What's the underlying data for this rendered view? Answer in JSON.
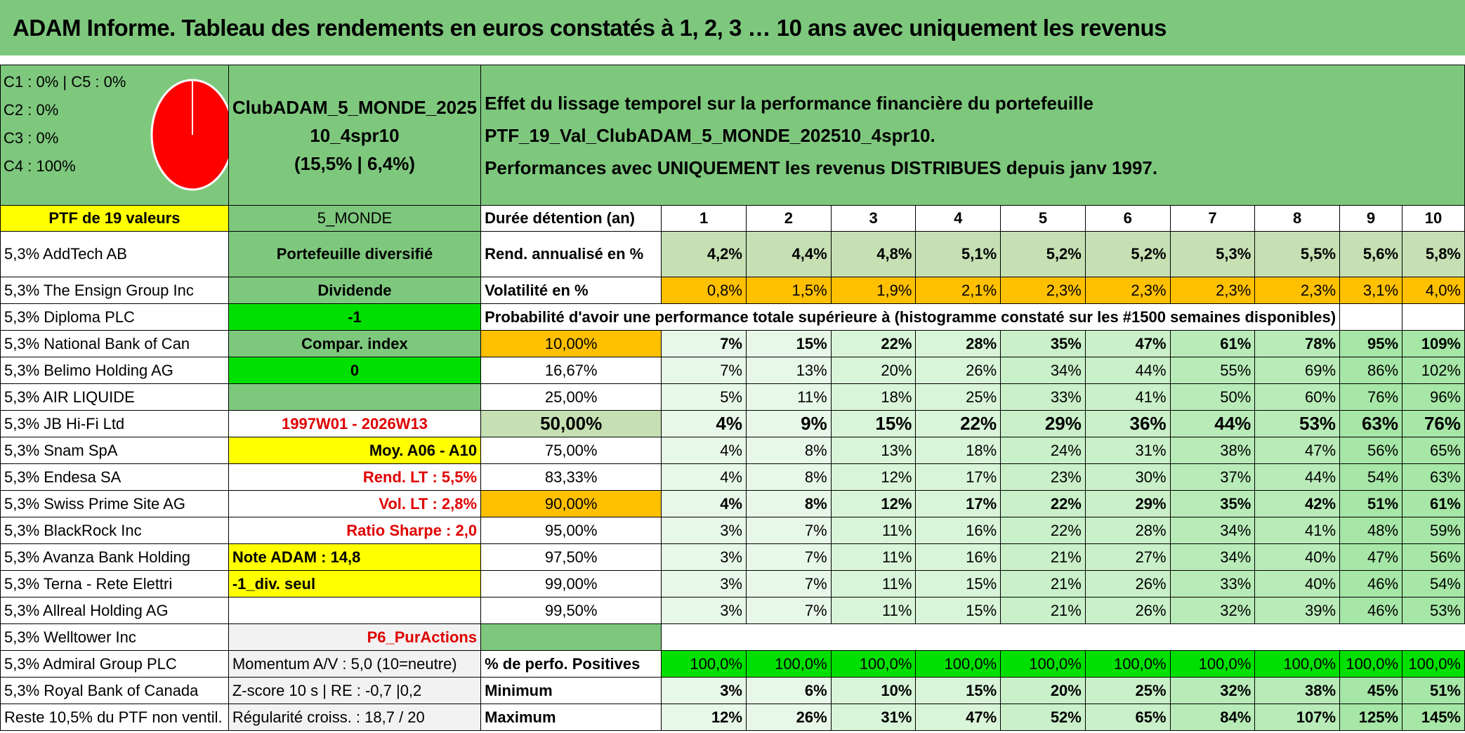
{
  "title": "ADAM Informe. Tableau des rendements en euros constatés à 1, 2, 3 … 10 ans avec uniquement les revenus",
  "pie_legend": [
    "C1 : 0% | C5 : 0%",
    "C2 : 0%",
    "C3 : 0%",
    "C4 : 100%"
  ],
  "portfolio_name": [
    "ClubADAM_5_MONDE_2025",
    "10_4spr10",
    "(15,5% | 6,4%)"
  ],
  "description": [
    "Effet du lissage temporel sur la performance financière du portefeuille PTF_19_Val_ClubADAM_5_MONDE_202510_4spr10.",
    "Performances avec UNIQUEMENT les revenus DISTRIBUES depuis janv 1997."
  ],
  "ptf_header": "PTF de 19 valeurs",
  "zone": "5_MONDE",
  "holdings": [
    "5,3% AddTech AB",
    "5,3% The Ensign Group Inc",
    "5,3% Diploma PLC",
    "5,3% National Bank of Can",
    "5,3% Belimo Holding AG",
    "5,3% AIR LIQUIDE",
    "5,3% JB Hi-Fi Ltd",
    "5,3% Snam SpA",
    "5,3% Endesa SA",
    "5,3% Swiss Prime Site AG",
    "5,3% BlackRock Inc",
    "5,3% Avanza Bank Holding",
    "5,3% Terna - Rete Elettri",
    "5,3% Allreal Holding AG",
    "5,3% Welltower Inc",
    "5,3% Admiral Group PLC",
    "5,3% Royal Bank of Canada",
    "Reste 10,5% du PTF non ventil."
  ],
  "info": [
    "Portefeuille diversifié",
    "Dividende",
    "-1",
    "Compar. index",
    "0",
    "",
    "1997W01 - 2026W13",
    "Moy. A06 - A10",
    "Rend. LT : 5,5%",
    "Vol. LT : 2,8%",
    "Ratio Sharpe : 2,0",
    "Note ADAM : 14,8",
    "-1_div. seul",
    "",
    "P6_PurActions",
    "Momentum A/V : 5,0 (10=neutre)",
    "Z-score 10 s | RE : -0,7 |0,2",
    "Régularité croiss. : 18,7 / 20"
  ],
  "years_label": "Durée détention (an)",
  "years": [
    "1",
    "2",
    "3",
    "4",
    "5",
    "6",
    "7",
    "8",
    "9",
    "10"
  ],
  "rend_label": "Rend. annualisé en %",
  "rend": [
    "4,2%",
    "4,4%",
    "4,8%",
    "5,1%",
    "5,2%",
    "5,2%",
    "5,3%",
    "5,5%",
    "5,6%",
    "5,8%"
  ],
  "vol_label": "Volatilité en %",
  "vol": [
    "0,8%",
    "1,5%",
    "1,9%",
    "2,1%",
    "2,3%",
    "2,3%",
    "2,3%",
    "2,3%",
    "3,1%",
    "4,0%"
  ],
  "proba_label": "Probabilité d'avoir une performance totale supérieure à (histogramme constaté sur les #1500 semaines disponibles)",
  "proba": [
    {
      "pct": "10,00%",
      "vals": [
        "7%",
        "15%",
        "22%",
        "28%",
        "35%",
        "47%",
        "61%",
        "78%",
        "95%",
        "109%"
      ]
    },
    {
      "pct": "16,67%",
      "vals": [
        "7%",
        "13%",
        "20%",
        "26%",
        "34%",
        "44%",
        "55%",
        "69%",
        "86%",
        "102%"
      ]
    },
    {
      "pct": "25,00%",
      "vals": [
        "5%",
        "11%",
        "18%",
        "25%",
        "33%",
        "41%",
        "50%",
        "60%",
        "76%",
        "96%"
      ]
    },
    {
      "pct": "50,00%",
      "vals": [
        "4%",
        "9%",
        "15%",
        "22%",
        "29%",
        "36%",
        "44%",
        "53%",
        "63%",
        "76%"
      ]
    },
    {
      "pct": "75,00%",
      "vals": [
        "4%",
        "8%",
        "13%",
        "18%",
        "24%",
        "31%",
        "38%",
        "47%",
        "56%",
        "65%"
      ]
    },
    {
      "pct": "83,33%",
      "vals": [
        "4%",
        "8%",
        "12%",
        "17%",
        "23%",
        "30%",
        "37%",
        "44%",
        "54%",
        "63%"
      ]
    },
    {
      "pct": "90,00%",
      "vals": [
        "4%",
        "8%",
        "12%",
        "17%",
        "22%",
        "29%",
        "35%",
        "42%",
        "51%",
        "61%"
      ]
    },
    {
      "pct": "95,00%",
      "vals": [
        "3%",
        "7%",
        "11%",
        "16%",
        "22%",
        "28%",
        "34%",
        "41%",
        "48%",
        "59%"
      ]
    },
    {
      "pct": "97,50%",
      "vals": [
        "3%",
        "7%",
        "11%",
        "16%",
        "21%",
        "27%",
        "34%",
        "40%",
        "47%",
        "56%"
      ]
    },
    {
      "pct": "99,00%",
      "vals": [
        "3%",
        "7%",
        "11%",
        "15%",
        "21%",
        "26%",
        "33%",
        "40%",
        "46%",
        "54%"
      ]
    },
    {
      "pct": "99,50%",
      "vals": [
        "3%",
        "7%",
        "11%",
        "15%",
        "21%",
        "26%",
        "32%",
        "39%",
        "46%",
        "53%"
      ]
    }
  ],
  "pos_label": "% de perfo. Positives",
  "pos": [
    "100,0%",
    "100,0%",
    "100,0%",
    "100,0%",
    "100,0%",
    "100,0%",
    "100,0%",
    "100,0%",
    "100,0%",
    "100,0%"
  ],
  "min_label": "Minimum",
  "min": [
    "3%",
    "6%",
    "10%",
    "15%",
    "20%",
    "25%",
    "32%",
    "38%",
    "45%",
    "51%"
  ],
  "max_label": "Maximum",
  "max": [
    "12%",
    "26%",
    "31%",
    "47%",
    "52%",
    "65%",
    "84%",
    "107%",
    "125%",
    "145%"
  ],
  "colors": {
    "header_green": "#7ec87e",
    "light_green": "#c6e0b4",
    "yellow": "#ffff00",
    "orange": "#ffc000",
    "bright_green": "#00e000",
    "red": "#e00000",
    "pie_fill": "#ff0000"
  }
}
